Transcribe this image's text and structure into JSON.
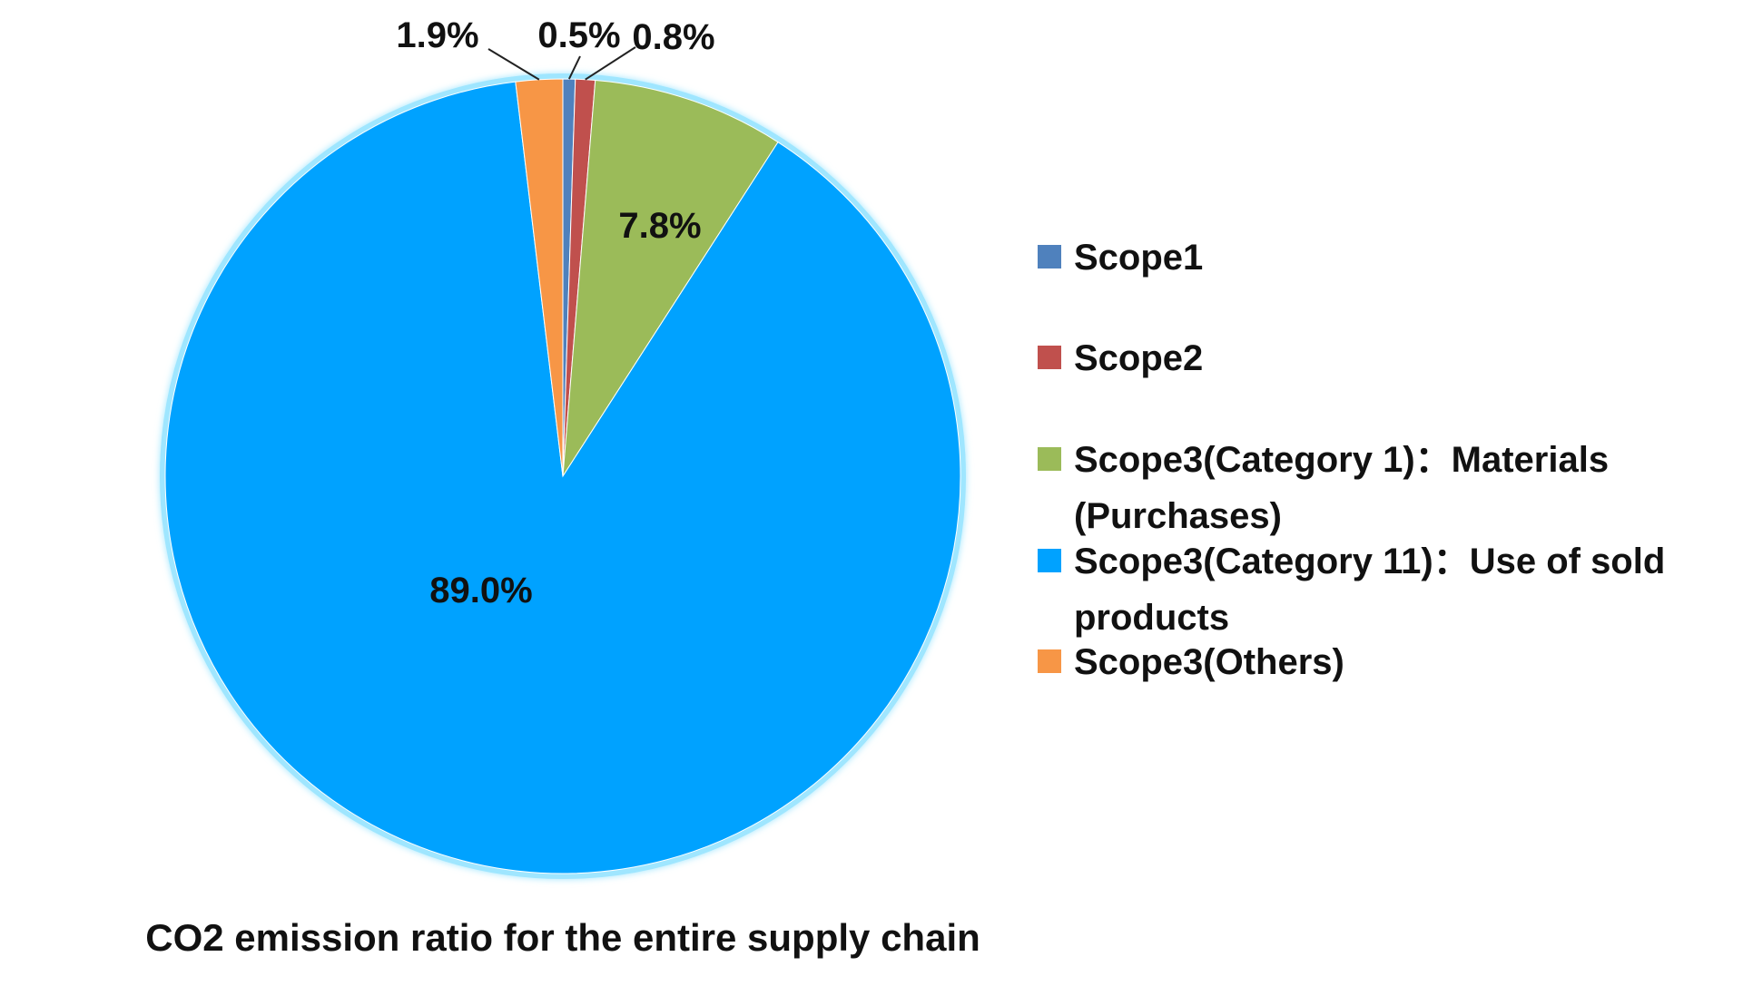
{
  "chart_data": {
    "type": "pie",
    "title": "CO2 emission ratio for the entire supply chain",
    "slices": [
      {
        "label": "Scope1",
        "value": 0.5,
        "value_label": "0.5%",
        "color": "#4F81BD"
      },
      {
        "label": "Scope2",
        "value": 0.8,
        "value_label": "0.8%",
        "color": "#C0504D"
      },
      {
        "label": "Scope3(Category 1)：Materials (Purchases)",
        "value": 7.8,
        "value_label": "7.8%",
        "color": "#9BBB59"
      },
      {
        "label": "Scope3(Category 11)：Use of sold products",
        "value": 89.0,
        "value_label": "89.0%",
        "color": "#00A2FF"
      },
      {
        "label": "Scope3(Others)",
        "value": 1.9,
        "value_label": "1.9%",
        "color": "#F79646"
      }
    ],
    "start_angle": "12 o'clock",
    "direction": "clockwise",
    "legend": {
      "position": "right",
      "lines": [
        [
          "Scope1"
        ],
        [
          "Scope2"
        ],
        [
          "Scope3(Category 1)：Materials",
          "(Purchases)"
        ],
        [
          "Scope3(Category 11)：Use of sold",
          "products"
        ],
        [
          "Scope3(Others)"
        ]
      ]
    }
  }
}
